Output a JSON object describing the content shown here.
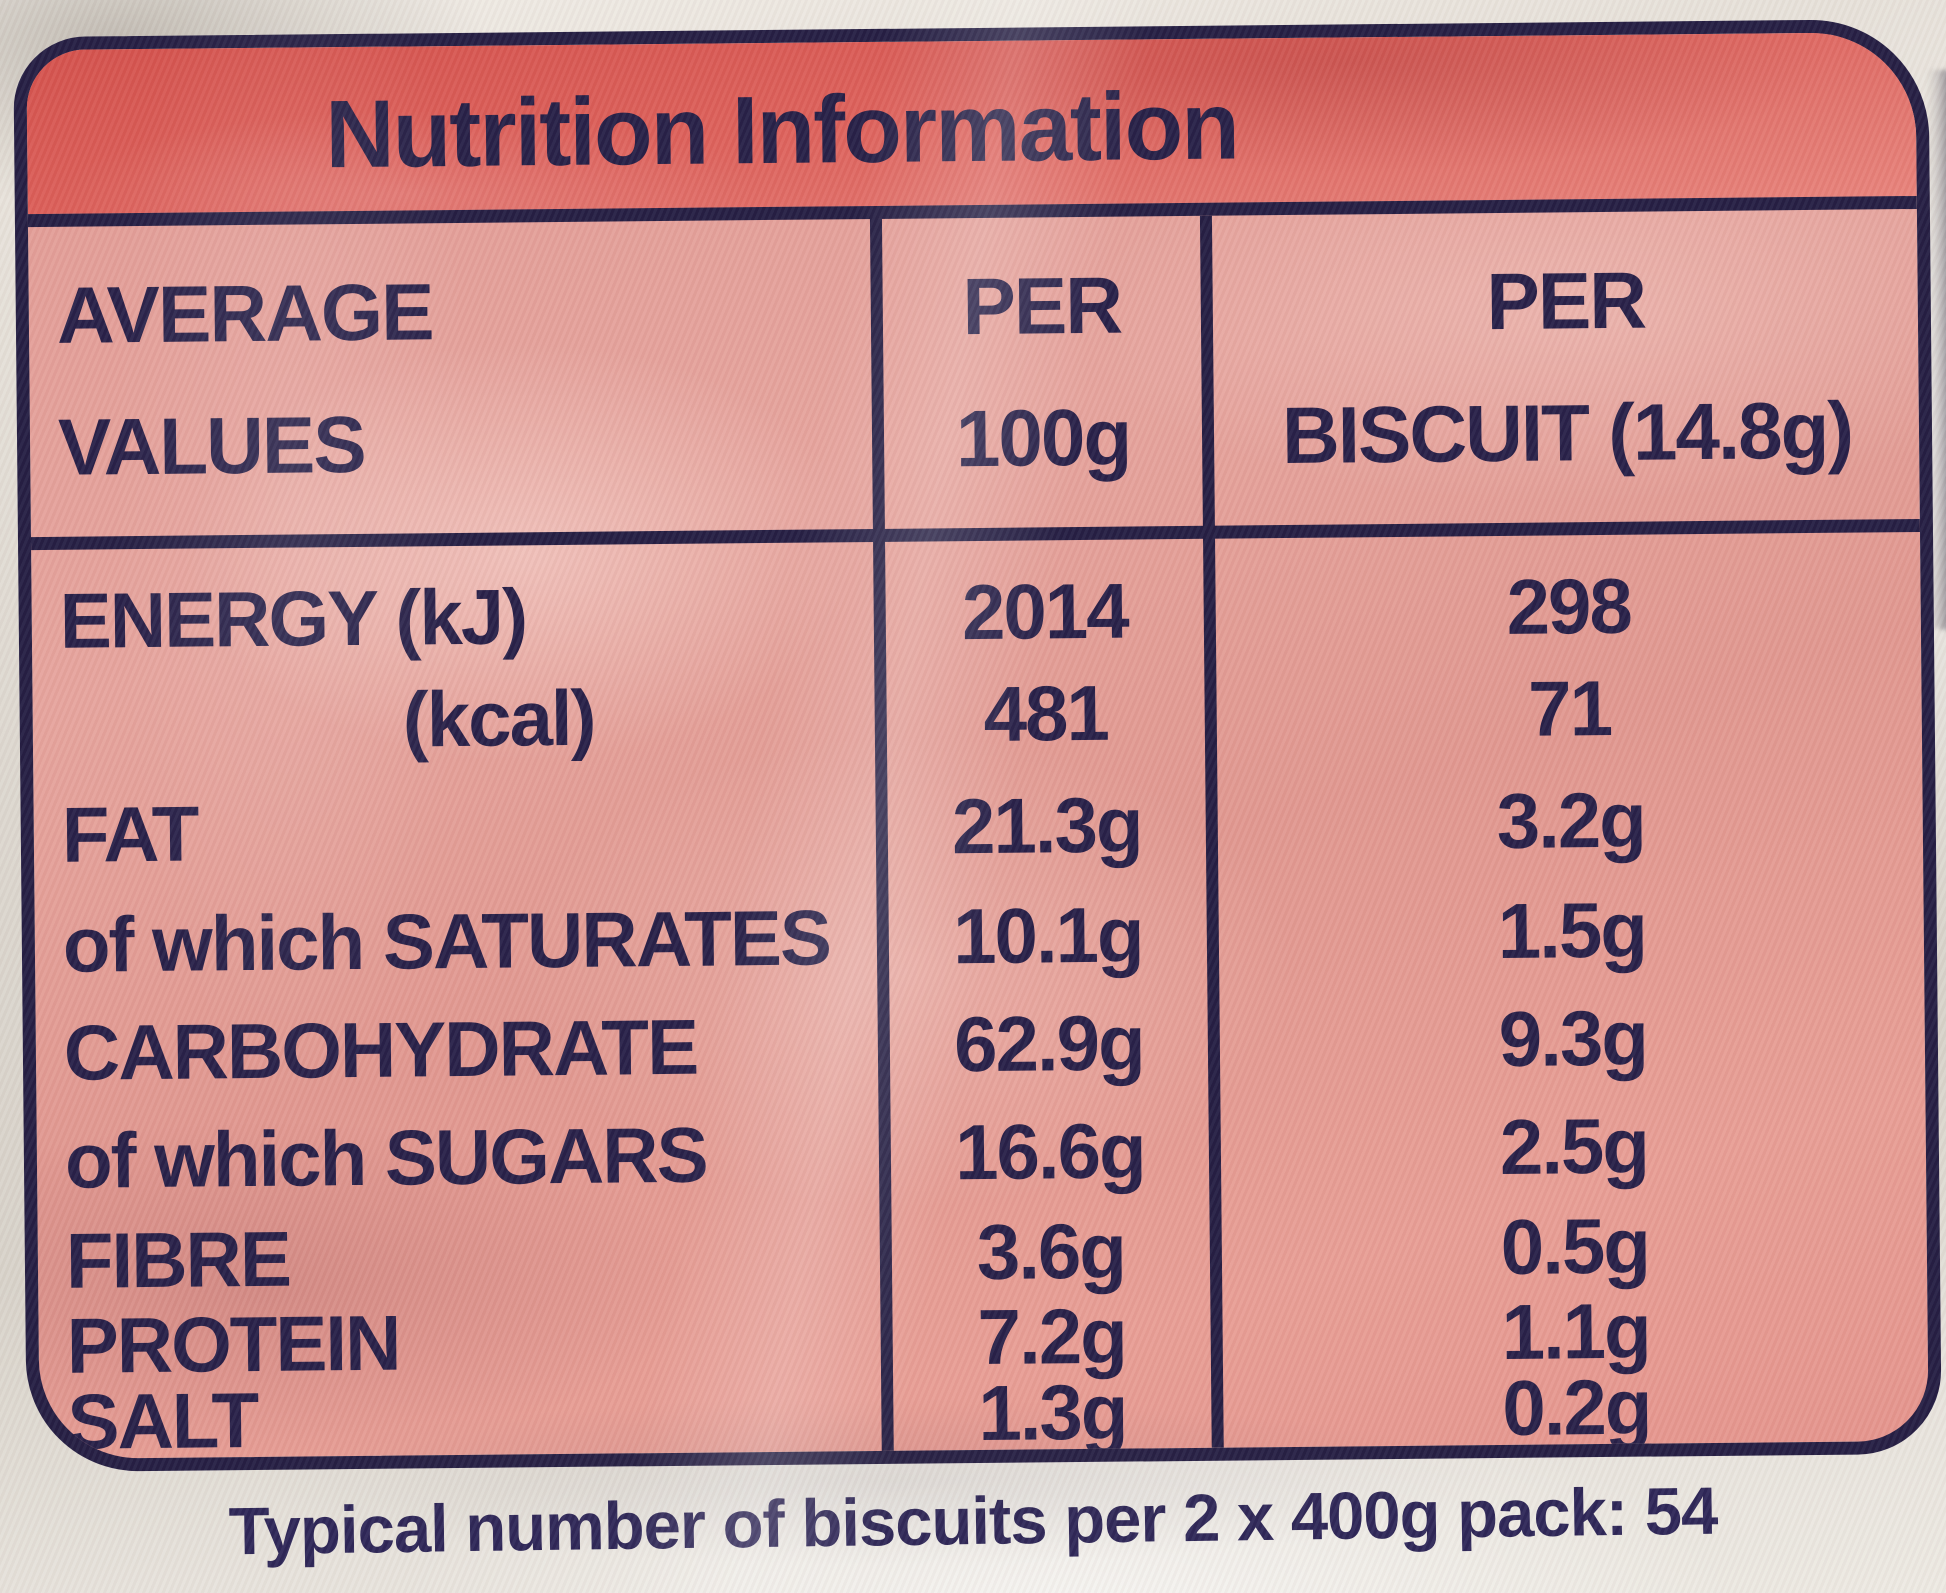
{
  "label": {
    "title": "Nutrition Information",
    "columns": [
      {
        "line1": "AVERAGE",
        "line2": "VALUES"
      },
      {
        "line1": "PER",
        "line2": "100g"
      },
      {
        "line1": "PER",
        "line2": "BISCUIT (14.8g)"
      }
    ],
    "rows": [
      {
        "nutrient": "ENERGY (kJ)",
        "per_100g": "2014",
        "per_biscuit": "298"
      },
      {
        "nutrient": "(kcal)",
        "per_100g": "481",
        "per_biscuit": "71"
      },
      {
        "nutrient": "FAT",
        "per_100g": "21.3g",
        "per_biscuit": "3.2g"
      },
      {
        "nutrient": "of which SATURATES",
        "per_100g": "10.1g",
        "per_biscuit": "1.5g"
      },
      {
        "nutrient": "CARBOHYDRATE",
        "per_100g": "62.9g",
        "per_biscuit": "9.3g"
      },
      {
        "nutrient": "of which SUGARS",
        "per_100g": "16.6g",
        "per_biscuit": "2.5g"
      },
      {
        "nutrient": "FIBRE",
        "per_100g": "3.6g",
        "per_biscuit": "0.5g"
      },
      {
        "nutrient": "PROTEIN",
        "per_100g": "7.2g",
        "per_biscuit": "1.1g"
      },
      {
        "nutrient": "SALT",
        "per_100g": "1.3g",
        "per_biscuit": "0.2g"
      }
    ],
    "pack_note": "Typical number of biscuits per 2 x 400g pack: 54"
  },
  "colors": {
    "ink_navy": "#272048",
    "banner_red": "#dd615b",
    "panel_pink": "#e6a49d",
    "package_background": "#dcd7cf"
  }
}
